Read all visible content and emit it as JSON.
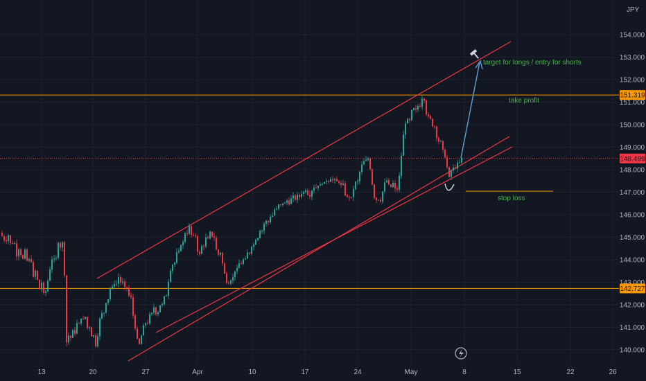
{
  "chart_data": {
    "type": "candlestick",
    "currency": "JPY",
    "x_ticks": [
      "13",
      "20",
      "27",
      "Apr",
      "10",
      "17",
      "24",
      "May",
      "8",
      "15",
      "22",
      "26"
    ],
    "y_ticks": [
      "140.000",
      "141.000",
      "142.000",
      "143.000",
      "144.000",
      "145.000",
      "146.000",
      "147.000",
      "148.000",
      "149.000",
      "150.000",
      "151.000",
      "152.000",
      "153.000",
      "154.000"
    ],
    "ylim": [
      139.55,
      155.3
    ],
    "grid": true,
    "price_path": [
      [
        0,
        145.2
      ],
      [
        4,
        145.0
      ],
      [
        8,
        144.8
      ],
      [
        12,
        145.1
      ],
      [
        16,
        144.6
      ],
      [
        20,
        144.9
      ],
      [
        24,
        144.2
      ],
      [
        28,
        144.6
      ],
      [
        32,
        143.9
      ],
      [
        36,
        144.4
      ],
      [
        40,
        143.8
      ],
      [
        44,
        144.2
      ],
      [
        48,
        143.2
      ],
      [
        52,
        143.6
      ],
      [
        56,
        142.6
      ],
      [
        60,
        143.0
      ],
      [
        64,
        142.3
      ],
      [
        68,
        142.9
      ],
      [
        72,
        143.6
      ],
      [
        76,
        144.2
      ],
      [
        80,
        143.8
      ],
      [
        84,
        144.8
      ],
      [
        88,
        144.5
      ],
      [
        92,
        145.0
      ],
      [
        95,
        140.1
      ],
      [
        98,
        140.8
      ],
      [
        101,
        140.3
      ],
      [
        104,
        141.0
      ],
      [
        107,
        140.5
      ],
      [
        110,
        141.3
      ],
      [
        113,
        140.9
      ],
      [
        116,
        141.6
      ],
      [
        119,
        141.1
      ],
      [
        122,
        141.8
      ],
      [
        125,
        140.8
      ],
      [
        128,
        141.3
      ],
      [
        131,
        140.5
      ],
      [
        134,
        140.9
      ],
      [
        137,
        140.1
      ],
      [
        140,
        140.4
      ],
      [
        143,
        141.2
      ],
      [
        146,
        141.7
      ],
      [
        149,
        141.4
      ],
      [
        152,
        142.2
      ],
      [
        155,
        142.0
      ],
      [
        158,
        142.8
      ],
      [
        161,
        142.6
      ],
      [
        164,
        143.1
      ],
      [
        167,
        142.7
      ],
      [
        170,
        143.4
      ],
      [
        173,
        142.9
      ],
      [
        176,
        143.2
      ],
      [
        179,
        142.6
      ],
      [
        182,
        143.0
      ],
      [
        185,
        142.3
      ],
      [
        188,
        142.6
      ],
      [
        191,
        141.7
      ],
      [
        194,
        141.2
      ],
      [
        197,
        140.6
      ],
      [
        200,
        140.1
      ],
      [
        203,
        140.5
      ],
      [
        206,
        140.9
      ],
      [
        209,
        141.3
      ],
      [
        212,
        141.0
      ],
      [
        215,
        141.6
      ],
      [
        218,
        141.4
      ],
      [
        221,
        142.0
      ],
      [
        224,
        141.7
      ],
      [
        227,
        141.5
      ],
      [
        230,
        142.1
      ],
      [
        233,
        141.8
      ],
      [
        236,
        142.4
      ],
      [
        239,
        142.2
      ],
      [
        242,
        142.9
      ],
      [
        245,
        143.4
      ],
      [
        248,
        143.9
      ],
      [
        251,
        143.6
      ],
      [
        254,
        144.4
      ],
      [
        257,
        144.1
      ],
      [
        260,
        144.8
      ],
      [
        263,
        144.5
      ],
      [
        266,
        145.3
      ],
      [
        269,
        145.0
      ],
      [
        272,
        145.6
      ],
      [
        275,
        145.2
      ],
      [
        278,
        144.9
      ],
      [
        281,
        145.3
      ],
      [
        284,
        144.6
      ],
      [
        287,
        144.0
      ],
      [
        290,
        144.7
      ],
      [
        293,
        144.4
      ],
      [
        296,
        145.1
      ],
      [
        299,
        144.7
      ],
      [
        302,
        145.3
      ],
      [
        305,
        145.0
      ],
      [
        308,
        145.2
      ],
      [
        311,
        144.6
      ],
      [
        314,
        144.1
      ],
      [
        317,
        144.5
      ],
      [
        320,
        144.0
      ],
      [
        323,
        143.5
      ],
      [
        326,
        143.1
      ],
      [
        329,
        142.9
      ],
      [
        332,
        143.2
      ],
      [
        335,
        143.0
      ],
      [
        338,
        143.6
      ],
      [
        341,
        143.4
      ],
      [
        344,
        143.9
      ],
      [
        347,
        143.7
      ],
      [
        350,
        144.1
      ],
      [
        353,
        143.8
      ],
      [
        356,
        144.4
      ],
      [
        359,
        144.1
      ],
      [
        362,
        144.7
      ],
      [
        365,
        144.5
      ],
      [
        368,
        145.0
      ],
      [
        371,
        144.8
      ],
      [
        374,
        145.4
      ],
      [
        377,
        145.2
      ],
      [
        380,
        145.5
      ],
      [
        383,
        145.8
      ],
      [
        386,
        145.5
      ],
      [
        389,
        146.0
      ],
      [
        392,
        145.8
      ],
      [
        395,
        146.3
      ],
      [
        398,
        146.1
      ],
      [
        401,
        146.5
      ],
      [
        404,
        146.3
      ],
      [
        407,
        146.6
      ],
      [
        410,
        146.4
      ],
      [
        413,
        146.7
      ],
      [
        416,
        146.5
      ],
      [
        419,
        146.6
      ],
      [
        422,
        146.9
      ],
      [
        425,
        146.6
      ],
      [
        428,
        146.9
      ],
      [
        431,
        146.7
      ],
      [
        434,
        147.0
      ],
      [
        437,
        146.9
      ],
      [
        440,
        147.2
      ],
      [
        443,
        147.0
      ],
      [
        446,
        146.8
      ],
      [
        449,
        147.0
      ],
      [
        452,
        147.3
      ],
      [
        455,
        147.1
      ],
      [
        458,
        147.4
      ],
      [
        461,
        147.2
      ],
      [
        464,
        147.5
      ],
      [
        467,
        147.3
      ],
      [
        470,
        147.6
      ],
      [
        473,
        147.4
      ],
      [
        476,
        147.7
      ],
      [
        479,
        147.5
      ],
      [
        482,
        147.6
      ],
      [
        485,
        147.4
      ],
      [
        488,
        147.6
      ],
      [
        491,
        147.2
      ],
      [
        494,
        147.5
      ],
      [
        497,
        147.0
      ],
      [
        500,
        146.7
      ],
      [
        503,
        146.9
      ],
      [
        506,
        146.6
      ],
      [
        509,
        147.0
      ],
      [
        512,
        147.5
      ],
      [
        515,
        147.3
      ],
      [
        518,
        147.8
      ],
      [
        521,
        148.1
      ],
      [
        524,
        148.4
      ],
      [
        527,
        148.3
      ],
      [
        530,
        148.6
      ],
      [
        533,
        148.3
      ],
      [
        536,
        147.6
      ],
      [
        539,
        146.9
      ],
      [
        542,
        146.6
      ],
      [
        545,
        146.8
      ],
      [
        548,
        146.5
      ],
      [
        551,
        146.9
      ],
      [
        554,
        147.3
      ],
      [
        557,
        147.6
      ],
      [
        560,
        147.4
      ],
      [
        563,
        147.1
      ],
      [
        566,
        147.5
      ],
      [
        569,
        147.2
      ],
      [
        572,
        147.0
      ],
      [
        575,
        147.4
      ],
      [
        578,
        148.3
      ],
      [
        581,
        149.3
      ],
      [
        584,
        150.0
      ],
      [
        587,
        150.3
      ],
      [
        590,
        150.0
      ],
      [
        593,
        150.5
      ],
      [
        596,
        150.8
      ],
      [
        599,
        150.5
      ],
      [
        602,
        150.9
      ],
      [
        605,
        150.7
      ],
      [
        608,
        151.1
      ],
      [
        611,
        151.4
      ],
      [
        614,
        150.6
      ],
      [
        617,
        150.3
      ],
      [
        620,
        150.4
      ],
      [
        623,
        149.9
      ],
      [
        626,
        150.1
      ],
      [
        629,
        149.6
      ],
      [
        632,
        149.2
      ],
      [
        635,
        149.4
      ],
      [
        638,
        148.9
      ],
      [
        641,
        148.7
      ],
      [
        644,
        148.4
      ],
      [
        647,
        147.5
      ],
      [
        650,
        147.9
      ],
      [
        653,
        148.1
      ],
      [
        656,
        148.0
      ],
      [
        659,
        148.3
      ],
      [
        662,
        148.2
      ],
      [
        665,
        148.5
      ]
    ],
    "lines": {
      "resistance": {
        "label": "151.319",
        "value": 151.319,
        "color": "#ff9800"
      },
      "support": {
        "label": "142.727",
        "value": 142.727,
        "color": "#ff9800"
      },
      "current": {
        "label": "148.499",
        "value": 148.499,
        "color": "#f23645"
      }
    },
    "channel": {
      "upper": {
        "from": [
          "Mar 21",
          142.8
        ],
        "to": [
          "May 11",
          153.6
        ]
      },
      "lower": [
        {
          "from": [
            "Mar 24",
            139.6
          ],
          "to": [
            "May 10",
            149.4
          ]
        },
        {
          "from": [
            "Mar 28",
            141.0
          ],
          "to": [
            "May 10",
            149.0
          ]
        }
      ]
    },
    "annotations": {
      "target": "target for longs / entry for shorts",
      "take_profit": "take profit",
      "stop_loss": "stop loss"
    },
    "colors": {
      "up": "#26a69a",
      "down": "#f23645",
      "arrow": "#42a5f5",
      "text": "#4caf50"
    }
  }
}
